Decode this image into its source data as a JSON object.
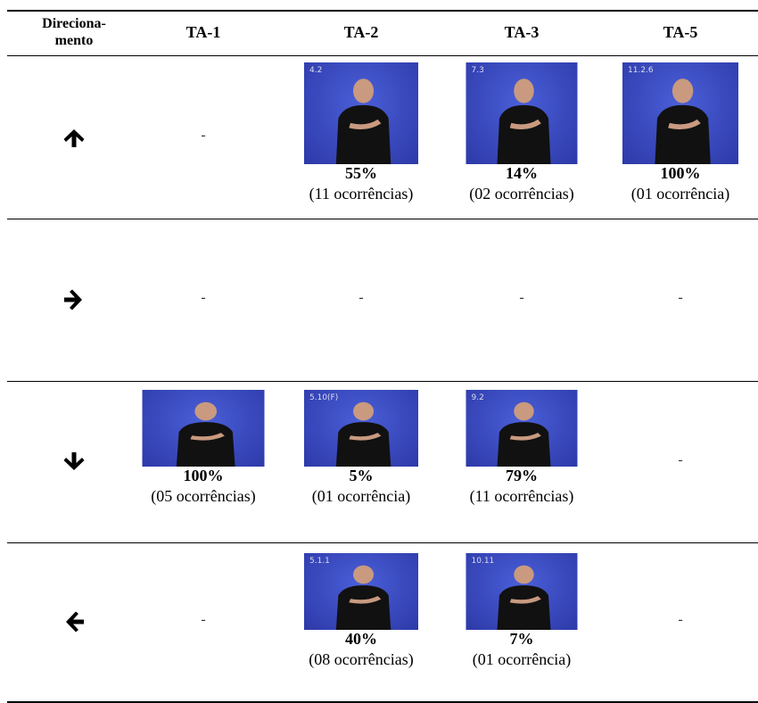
{
  "table": {
    "header": [
      [
        "Direciona-",
        "mento"
      ],
      "TA-1",
      "TA-2",
      "TA-3",
      "TA-5"
    ],
    "rows": [
      {
        "cells": [
          "-",
          {
            "image_label": "4.2",
            "percent": "55%",
            "occurrences": "(11 ocorrências)"
          },
          {
            "image_label": "7.3",
            "percent": "14%",
            "occurrences": "(02 ocorrências)"
          },
          {
            "image_label": "11.2.6",
            "percent": "100%",
            "occurrences": "(01 ocorrência)"
          }
        ]
      },
      {
        "cells": [
          "-",
          "-",
          "-",
          "-"
        ]
      },
      {
        "cells": [
          {
            "image_label": "",
            "percent": "100%",
            "occurrences": "(05 ocorrências)"
          },
          {
            "image_label": "5.10(F)",
            "percent": "5%",
            "occurrences": "(01 ocorrência)"
          },
          {
            "image_label": "9.2",
            "percent": "79%",
            "occurrences": "(11 ocorrências)"
          },
          "-"
        ]
      },
      {
        "cells": [
          "-",
          {
            "image_label": "5.1.1",
            "percent": "40%",
            "occurrences": "(08 ocorrências)"
          },
          {
            "image_label": "10.11",
            "percent": "7%",
            "occurrences": "(01 ocorrência)"
          },
          "-"
        ]
      }
    ]
  }
}
